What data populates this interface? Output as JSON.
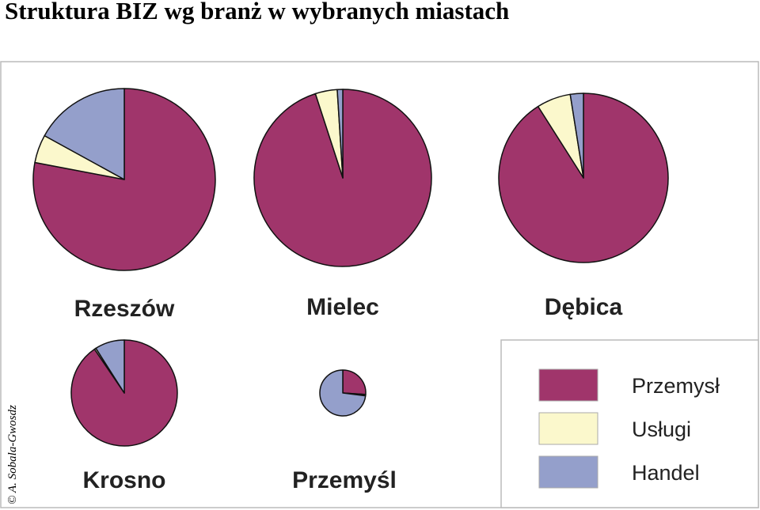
{
  "chart_data": {
    "type": "pie",
    "title": "Struktura BIZ wg branż w wybranych miastach",
    "credit": "© A. Sobala-Gwosdz",
    "categories": [
      "Przemysł",
      "Usługi",
      "Handel"
    ],
    "colors": [
      "#a0356b",
      "#fbf8cc",
      "#949fcb"
    ],
    "pies": [
      {
        "name": "Rzeszów",
        "values": [
          78,
          5,
          17
        ]
      },
      {
        "name": "Mielec",
        "values": [
          95,
          4,
          1
        ]
      },
      {
        "name": "Dębica",
        "values": [
          91,
          6.5,
          2.5
        ]
      },
      {
        "name": "Krosno",
        "values": [
          90.5,
          0.5,
          9
        ]
      },
      {
        "name": "Przemyśl",
        "values": [
          26,
          1,
          73
        ]
      }
    ]
  }
}
